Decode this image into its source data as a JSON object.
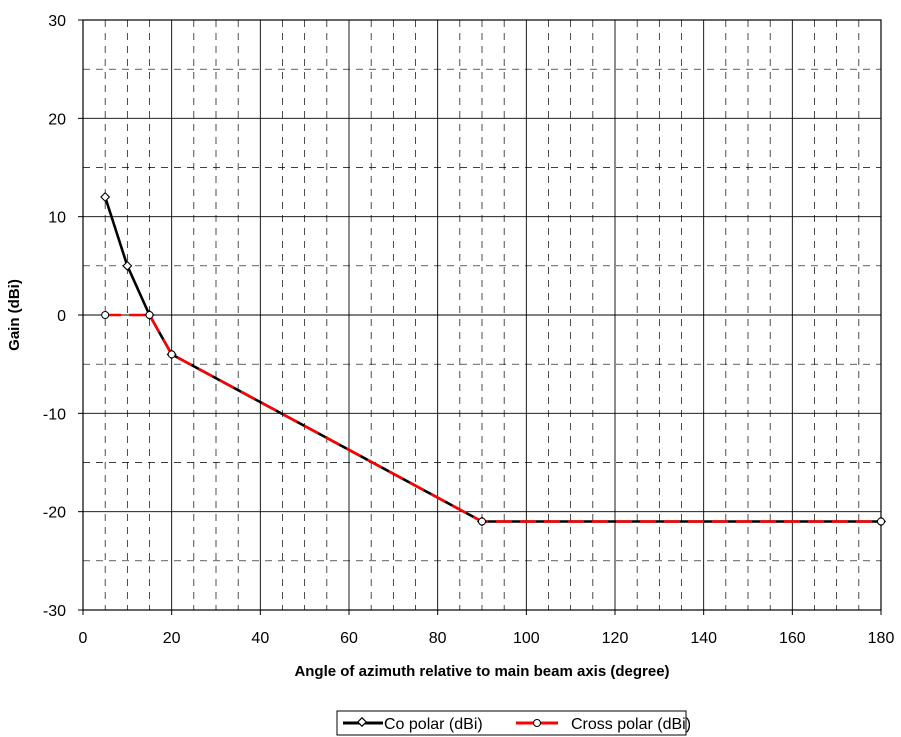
{
  "chart_data": {
    "type": "line",
    "xlabel": "Angle of azimuth relative to main beam axis (degree)",
    "ylabel": "Gain (dBi)",
    "xlim": [
      0,
      180
    ],
    "ylim": [
      -30,
      30
    ],
    "x_ticks": [
      0,
      20,
      40,
      60,
      80,
      100,
      120,
      140,
      160,
      180
    ],
    "y_ticks": [
      30,
      20,
      10,
      0,
      -10,
      -20,
      -30
    ],
    "x_tick_labels": [
      "0",
      "20",
      "40",
      "60",
      "80",
      "100",
      "120",
      "140",
      "160",
      "180"
    ],
    "y_tick_labels": [
      "30",
      "20",
      "10",
      "0",
      "-10",
      "-20",
      "-30"
    ],
    "grid": {
      "major": true,
      "minor": true,
      "minor_style": "dashed"
    },
    "legend_position": "bottom-center",
    "series": [
      {
        "name": "Co polar (dBi)",
        "color": "#000000",
        "marker": "diamond",
        "points": [
          [
            5,
            12
          ],
          [
            10,
            5
          ],
          [
            15,
            0
          ],
          [
            20,
            -4
          ],
          [
            90,
            -21
          ],
          [
            180,
            -21
          ]
        ]
      },
      {
        "name": "Cross polar (dBi)",
        "color": "#ff0000",
        "marker": "circle",
        "line_style": "dashed",
        "points": [
          [
            5,
            0
          ],
          [
            15,
            0
          ],
          [
            20,
            -4
          ],
          [
            90,
            -21
          ],
          [
            180,
            -21
          ]
        ]
      }
    ]
  }
}
